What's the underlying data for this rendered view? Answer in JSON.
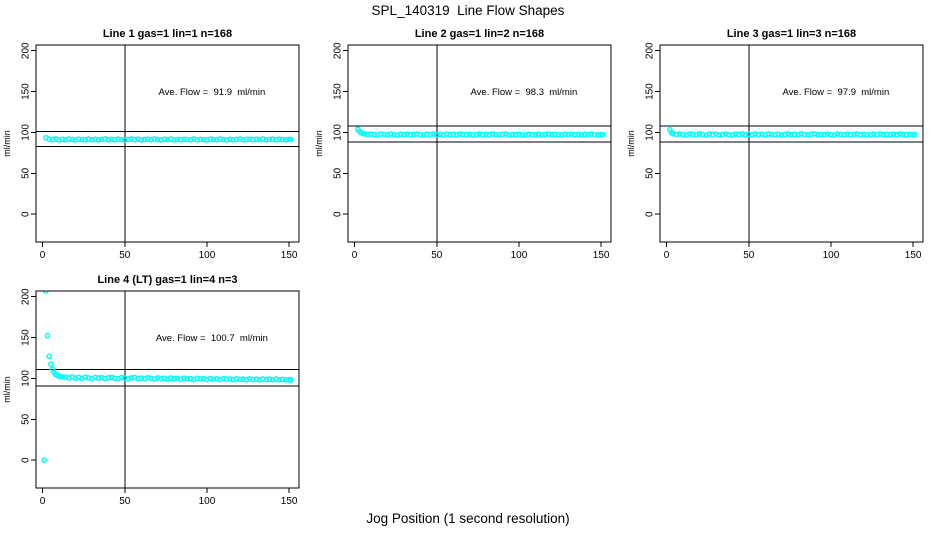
{
  "title": "SPL_140319  Line Flow Shapes",
  "xlabel": "Jog Position (1 second resolution)",
  "colors": {
    "point": "#00ffff",
    "axis": "#000000",
    "background": "#ffffff"
  },
  "chart_data": [
    {
      "type": "scatter",
      "title": "Line 1 gas=1 lin=1 n=168",
      "annotation": "Ave. Flow =  91.9  ml/min",
      "ave_flow_ml_min": 91.9,
      "ylabel": "ml/min",
      "col": 0,
      "row": 0,
      "xlim": [
        -4,
        156
      ],
      "ylim": [
        -34,
        207
      ],
      "xticks": [
        0,
        50,
        100,
        150
      ],
      "yticks": [
        0,
        50,
        100,
        150,
        200
      ],
      "vlines": [
        50
      ],
      "hlines": [
        101.1,
        82.7
      ],
      "ann_xy": [
        103,
        150
      ],
      "points": [
        [
          2,
          93.6
        ],
        [
          4,
          91.9
        ],
        [
          6,
          91.2
        ],
        [
          8,
          92.0
        ],
        [
          10,
          90.8
        ],
        [
          12,
          91.6
        ],
        [
          14,
          91.0
        ],
        [
          16,
          92.1
        ],
        [
          18,
          91.5
        ],
        [
          20,
          90.7
        ],
        [
          22,
          91.8
        ],
        [
          24,
          91.3
        ],
        [
          26,
          90.9
        ],
        [
          28,
          92.0
        ],
        [
          30,
          91.1
        ],
        [
          32,
          91.7
        ],
        [
          34,
          90.8
        ],
        [
          36,
          91.4
        ],
        [
          38,
          92.2
        ],
        [
          40,
          91.0
        ],
        [
          42,
          91.6
        ],
        [
          44,
          90.9
        ],
        [
          46,
          91.9
        ],
        [
          48,
          91.2
        ],
        [
          50,
          90.7
        ],
        [
          52,
          91.5
        ],
        [
          54,
          92.0
        ],
        [
          56,
          91.1
        ],
        [
          58,
          91.8
        ],
        [
          60,
          90.8
        ],
        [
          62,
          91.3
        ],
        [
          64,
          91.9
        ],
        [
          66,
          91.0
        ],
        [
          68,
          92.1
        ],
        [
          70,
          91.4
        ],
        [
          72,
          90.9
        ],
        [
          74,
          91.7
        ],
        [
          76,
          91.2
        ],
        [
          78,
          92.0
        ],
        [
          80,
          90.8
        ],
        [
          82,
          91.5
        ],
        [
          84,
          91.1
        ],
        [
          86,
          91.8
        ],
        [
          88,
          91.3
        ],
        [
          90,
          90.9
        ],
        [
          92,
          92.1
        ],
        [
          94,
          91.0
        ],
        [
          96,
          91.6
        ],
        [
          98,
          91.2
        ],
        [
          100,
          90.7
        ],
        [
          102,
          91.9
        ],
        [
          104,
          91.4
        ],
        [
          106,
          91.0
        ],
        [
          108,
          92.0
        ],
        [
          110,
          91.3
        ],
        [
          112,
          90.8
        ],
        [
          114,
          91.7
        ],
        [
          116,
          91.1
        ],
        [
          118,
          91.5
        ],
        [
          120,
          92.2
        ],
        [
          122,
          90.9
        ],
        [
          124,
          91.4
        ],
        [
          126,
          91.8
        ],
        [
          128,
          91.0
        ],
        [
          130,
          91.6
        ],
        [
          132,
          91.2
        ],
        [
          134,
          92.0
        ],
        [
          136,
          90.8
        ],
        [
          138,
          91.5
        ],
        [
          140,
          91.9
        ],
        [
          142,
          91.1
        ],
        [
          144,
          91.7
        ],
        [
          146,
          91.3
        ],
        [
          148,
          90.9
        ],
        [
          150,
          91.6
        ],
        [
          151,
          91.4
        ]
      ]
    },
    {
      "type": "scatter",
      "title": "Line 2 gas=1 lin=2 n=168",
      "annotation": "Ave. Flow =  98.3  ml/min",
      "ave_flow_ml_min": 98.3,
      "ylabel": "ml/min",
      "col": 1,
      "row": 0,
      "xlim": [
        -4,
        156
      ],
      "ylim": [
        -34,
        207
      ],
      "xticks": [
        0,
        50,
        100,
        150
      ],
      "yticks": [
        0,
        50,
        100,
        150,
        200
      ],
      "vlines": [
        50
      ],
      "hlines": [
        108.1,
        88.5
      ],
      "ann_xy": [
        103,
        150
      ],
      "points": [
        [
          2,
          104.0
        ],
        [
          3,
          101.2
        ],
        [
          4,
          99.6
        ],
        [
          5,
          98.9
        ],
        [
          6,
          98.3
        ],
        [
          8,
          97.5
        ],
        [
          10,
          98.0
        ],
        [
          12,
          97.2
        ],
        [
          14,
          96.8
        ],
        [
          16,
          98.1
        ],
        [
          18,
          97.6
        ],
        [
          20,
          97.0
        ],
        [
          22,
          98.2
        ],
        [
          24,
          97.4
        ],
        [
          26,
          96.6
        ],
        [
          28,
          97.9
        ],
        [
          30,
          97.3
        ],
        [
          32,
          98.0
        ],
        [
          34,
          96.9
        ],
        [
          36,
          97.5
        ],
        [
          38,
          98.1
        ],
        [
          40,
          97.2
        ],
        [
          42,
          96.7
        ],
        [
          44,
          97.8
        ],
        [
          46,
          97.4
        ],
        [
          48,
          98.2
        ],
        [
          50,
          97.0
        ],
        [
          52,
          97.6
        ],
        [
          54,
          96.8
        ],
        [
          56,
          98.0
        ],
        [
          58,
          97.3
        ],
        [
          60,
          97.7
        ],
        [
          62,
          96.9
        ],
        [
          64,
          98.1
        ],
        [
          66,
          97.5
        ],
        [
          68,
          97.1
        ],
        [
          70,
          97.8
        ],
        [
          72,
          96.7
        ],
        [
          74,
          97.4
        ],
        [
          76,
          98.0
        ],
        [
          78,
          97.2
        ],
        [
          80,
          97.6
        ],
        [
          82,
          96.9
        ],
        [
          84,
          98.2
        ],
        [
          86,
          97.3
        ],
        [
          88,
          97.0
        ],
        [
          90,
          97.7
        ],
        [
          92,
          98.1
        ],
        [
          94,
          96.8
        ],
        [
          96,
          97.5
        ],
        [
          98,
          97.2
        ],
        [
          100,
          97.9
        ],
        [
          102,
          97.0
        ],
        [
          104,
          96.7
        ],
        [
          106,
          98.0
        ],
        [
          108,
          97.4
        ],
        [
          110,
          97.1
        ],
        [
          112,
          97.8
        ],
        [
          114,
          96.9
        ],
        [
          116,
          97.5
        ],
        [
          118,
          98.1
        ],
        [
          120,
          97.2
        ],
        [
          122,
          97.6
        ],
        [
          124,
          97.0
        ],
        [
          126,
          96.8
        ],
        [
          128,
          97.9
        ],
        [
          130,
          97.3
        ],
        [
          132,
          98.0
        ],
        [
          134,
          97.1
        ],
        [
          136,
          97.5
        ],
        [
          138,
          96.9
        ],
        [
          140,
          97.7
        ],
        [
          142,
          97.2
        ],
        [
          144,
          98.0
        ],
        [
          146,
          97.4
        ],
        [
          148,
          96.8
        ],
        [
          150,
          97.6
        ],
        [
          151,
          97.3
        ]
      ]
    },
    {
      "type": "scatter",
      "title": "Line 3 gas=1 lin=3 n=168",
      "annotation": "Ave. Flow =  97.9  ml/min",
      "ave_flow_ml_min": 97.9,
      "ylabel": "ml/min",
      "col": 2,
      "row": 0,
      "xlim": [
        -4,
        156
      ],
      "ylim": [
        -34,
        207
      ],
      "xticks": [
        0,
        50,
        100,
        150
      ],
      "yticks": [
        0,
        50,
        100,
        150,
        200
      ],
      "vlines": [
        50
      ],
      "hlines": [
        107.7,
        88.1
      ],
      "ann_xy": [
        103,
        150
      ],
      "points": [
        [
          2,
          103.3
        ],
        [
          3,
          99.8
        ],
        [
          4,
          98.4
        ],
        [
          6,
          97.6
        ],
        [
          8,
          98.1
        ],
        [
          10,
          97.3
        ],
        [
          12,
          96.9
        ],
        [
          14,
          98.2
        ],
        [
          16,
          97.7
        ],
        [
          18,
          97.1
        ],
        [
          20,
          98.3
        ],
        [
          22,
          97.5
        ],
        [
          24,
          96.7
        ],
        [
          26,
          98.0
        ],
        [
          28,
          97.4
        ],
        [
          30,
          98.1
        ],
        [
          32,
          97.0
        ],
        [
          34,
          97.6
        ],
        [
          36,
          98.2
        ],
        [
          38,
          97.3
        ],
        [
          40,
          96.8
        ],
        [
          42,
          97.9
        ],
        [
          44,
          97.5
        ],
        [
          46,
          98.3
        ],
        [
          48,
          97.1
        ],
        [
          50,
          97.7
        ],
        [
          52,
          96.9
        ],
        [
          54,
          98.1
        ],
        [
          56,
          97.4
        ],
        [
          58,
          97.8
        ],
        [
          60,
          97.0
        ],
        [
          62,
          98.2
        ],
        [
          64,
          97.6
        ],
        [
          66,
          97.2
        ],
        [
          68,
          97.9
        ],
        [
          70,
          96.8
        ],
        [
          72,
          97.5
        ],
        [
          74,
          98.1
        ],
        [
          76,
          97.3
        ],
        [
          78,
          97.7
        ],
        [
          80,
          97.0
        ],
        [
          82,
          98.3
        ],
        [
          84,
          97.4
        ],
        [
          86,
          97.1
        ],
        [
          88,
          97.8
        ],
        [
          90,
          98.2
        ],
        [
          92,
          96.9
        ],
        [
          94,
          97.6
        ],
        [
          96,
          97.3
        ],
        [
          98,
          98.0
        ],
        [
          100,
          97.1
        ],
        [
          102,
          96.8
        ],
        [
          104,
          98.1
        ],
        [
          106,
          97.5
        ],
        [
          108,
          97.2
        ],
        [
          110,
          97.9
        ],
        [
          112,
          97.0
        ],
        [
          114,
          97.6
        ],
        [
          116,
          98.2
        ],
        [
          118,
          97.3
        ],
        [
          120,
          97.7
        ],
        [
          122,
          97.1
        ],
        [
          124,
          96.9
        ],
        [
          126,
          98.0
        ],
        [
          128,
          97.4
        ],
        [
          130,
          98.1
        ],
        [
          132,
          97.2
        ],
        [
          134,
          97.6
        ],
        [
          136,
          97.0
        ],
        [
          138,
          97.8
        ],
        [
          140,
          97.3
        ],
        [
          142,
          98.1
        ],
        [
          144,
          97.5
        ],
        [
          146,
          96.9
        ],
        [
          148,
          97.7
        ],
        [
          150,
          97.2
        ],
        [
          151,
          97.5
        ]
      ]
    },
    {
      "type": "scatter",
      "title": "Line 4 (LT) gas=1 lin=4 n=3",
      "annotation": "Ave. Flow =  100.7  ml/min",
      "ave_flow_ml_min": 100.7,
      "ylabel": "ml/min",
      "col": 0,
      "row": 1,
      "xlim": [
        -4,
        156
      ],
      "ylim": [
        -34,
        207
      ],
      "xticks": [
        0,
        50,
        100,
        150
      ],
      "yticks": [
        0,
        50,
        100,
        150,
        200
      ],
      "vlines": [
        50
      ],
      "hlines": [
        110.8,
        90.6
      ],
      "ann_xy": [
        103,
        150
      ],
      "points": [
        [
          1,
          0.0
        ],
        [
          2,
          207.0
        ],
        [
          3,
          152.5
        ],
        [
          4,
          127.0
        ],
        [
          5,
          117.5
        ],
        [
          6,
          111.5
        ],
        [
          7,
          107.5
        ],
        [
          8,
          105.0
        ],
        [
          9,
          103.5
        ],
        [
          10,
          102.8
        ],
        [
          11,
          102.3
        ],
        [
          12,
          101.9
        ],
        [
          14,
          101.8
        ],
        [
          16,
          100.6
        ],
        [
          18,
          101.9
        ],
        [
          20,
          100.3
        ],
        [
          22,
          101.4
        ],
        [
          24,
          100.0
        ],
        [
          26,
          101.6
        ],
        [
          28,
          100.8
        ],
        [
          30,
          99.9
        ],
        [
          32,
          101.3
        ],
        [
          34,
          100.5
        ],
        [
          36,
          101.1
        ],
        [
          38,
          99.8
        ],
        [
          40,
          100.9
        ],
        [
          42,
          101.4
        ],
        [
          44,
          100.2
        ],
        [
          46,
          99.7
        ],
        [
          48,
          101.0
        ],
        [
          50,
          100.4
        ],
        [
          52,
          99.6
        ],
        [
          54,
          100.8
        ],
        [
          56,
          101.2
        ],
        [
          58,
          99.9
        ],
        [
          60,
          100.5
        ],
        [
          62,
          99.5
        ],
        [
          64,
          100.9
        ],
        [
          66,
          100.1
        ],
        [
          68,
          99.4
        ],
        [
          70,
          100.7
        ],
        [
          72,
          99.8
        ],
        [
          74,
          100.3
        ],
        [
          76,
          99.2
        ],
        [
          78,
          100.6
        ],
        [
          80,
          99.7
        ],
        [
          82,
          100.1
        ],
        [
          84,
          99.0
        ],
        [
          86,
          100.4
        ],
        [
          88,
          99.5
        ],
        [
          90,
          99.9
        ],
        [
          92,
          98.8
        ],
        [
          94,
          100.2
        ],
        [
          96,
          99.3
        ],
        [
          98,
          99.8
        ],
        [
          100,
          98.7
        ],
        [
          102,
          100.0
        ],
        [
          104,
          99.1
        ],
        [
          106,
          99.6
        ],
        [
          108,
          98.6
        ],
        [
          110,
          99.9
        ],
        [
          112,
          99.0
        ],
        [
          114,
          99.4
        ],
        [
          116,
          98.5
        ],
        [
          118,
          99.7
        ],
        [
          120,
          98.9
        ],
        [
          122,
          99.2
        ],
        [
          124,
          98.4
        ],
        [
          126,
          99.6
        ],
        [
          128,
          98.8
        ],
        [
          130,
          99.1
        ],
        [
          132,
          98.3
        ],
        [
          134,
          99.4
        ],
        [
          136,
          98.6
        ],
        [
          138,
          99.0
        ],
        [
          140,
          98.2
        ],
        [
          142,
          99.3
        ],
        [
          144,
          98.5
        ],
        [
          146,
          98.9
        ],
        [
          148,
          98.1
        ],
        [
          150,
          98.4
        ],
        [
          151,
          98.3
        ]
      ]
    }
  ]
}
